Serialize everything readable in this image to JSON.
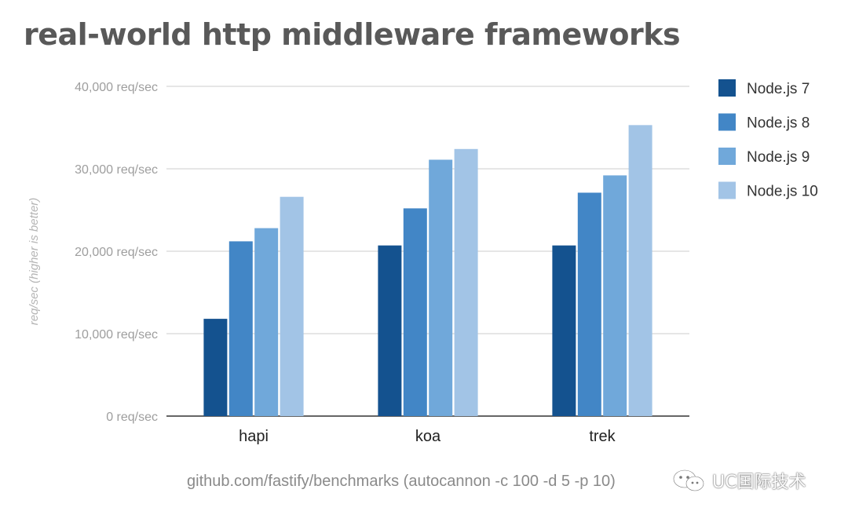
{
  "chart_data": {
    "type": "bar",
    "title": "real-world http middleware frameworks",
    "ylabel": "req/sec (higher is better)",
    "xlabel": "",
    "categories": [
      "hapi",
      "koa",
      "trek"
    ],
    "series": [
      {
        "name": "Node.js 7",
        "color": "#14528f",
        "values": [
          11800,
          20700,
          20700
        ]
      },
      {
        "name": "Node.js 8",
        "color": "#4286c6",
        "values": [
          21200,
          25200,
          27100
        ]
      },
      {
        "name": "Node.js 9",
        "color": "#70a8da",
        "values": [
          22800,
          31100,
          29200
        ]
      },
      {
        "name": "Node.js 10",
        "color": "#a2c4e6",
        "values": [
          26600,
          32400,
          35300
        ]
      }
    ],
    "ylim": [
      0,
      40000
    ],
    "yticks": [
      0,
      10000,
      20000,
      30000,
      40000
    ],
    "ytick_labels": [
      "0 req/sec",
      "10,000 req/sec",
      "20,000 req/sec",
      "30,000 req/sec",
      "40,000 req/sec"
    ],
    "grid": true,
    "legend_position": "right"
  },
  "source_note": "github.com/fastify/benchmarks (autocannon -c 100 -d 5 -p 10)",
  "watermark": {
    "icon": "wechat-icon",
    "text": "UC国际技术"
  }
}
